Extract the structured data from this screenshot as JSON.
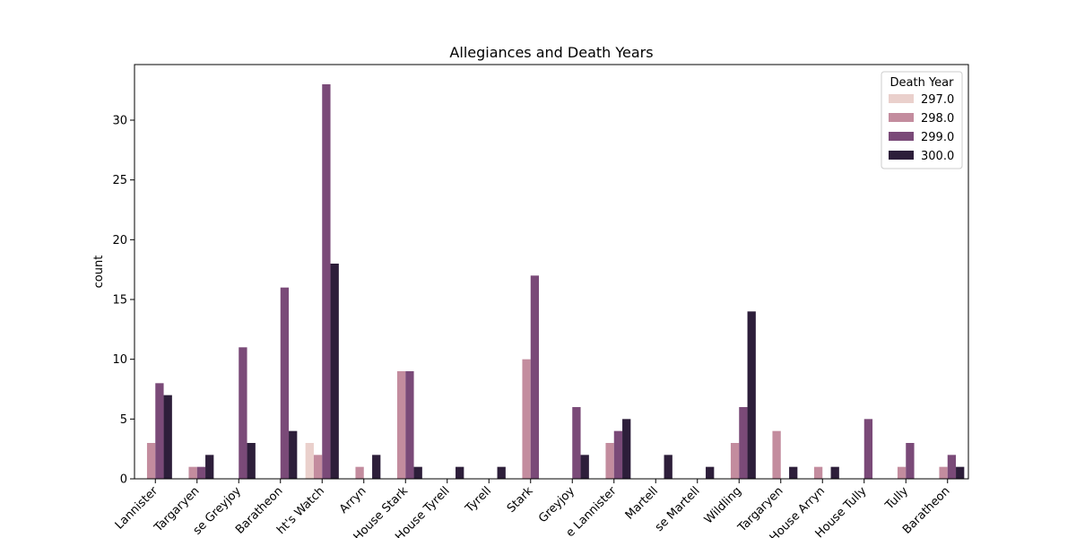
{
  "chart_data": {
    "type": "bar",
    "title": "Allegiances and Death Years",
    "xlabel": "",
    "ylabel": "count",
    "ylim": [
      0,
      34.65
    ],
    "yticks": [
      0,
      5,
      10,
      15,
      20,
      25,
      30
    ],
    "categories": [
      "Lannister",
      "Targaryen",
      "se Greyjoy",
      "Baratheon",
      "ht's Watch",
      "Arryn",
      "House Stark",
      "House Tyrell",
      "Tyrell",
      "Stark",
      "Greyjoy",
      "e Lannister",
      "Martell",
      "se Martell",
      "Wildling",
      "Targaryen",
      "House Arryn",
      "House Tully",
      "Tully",
      "Baratheon"
    ],
    "legend": {
      "title": "Death Year",
      "position": "top-right"
    },
    "series": [
      {
        "name": "297.0",
        "color": "#ead0cc",
        "values": [
          0,
          0,
          0,
          0,
          3,
          0,
          0,
          0,
          0,
          0,
          0,
          0,
          0,
          0,
          0,
          0,
          0,
          0,
          0,
          0
        ]
      },
      {
        "name": "298.0",
        "color": "#c38c9e",
        "values": [
          3,
          1,
          0,
          0,
          2,
          1,
          9,
          0,
          0,
          10,
          0,
          3,
          0,
          0,
          3,
          4,
          1,
          0,
          1,
          1
        ]
      },
      {
        "name": "299.0",
        "color": "#7a4a78",
        "values": [
          8,
          1,
          11,
          16,
          33,
          0,
          9,
          0,
          0,
          17,
          6,
          4,
          0,
          0,
          6,
          0,
          0,
          5,
          3,
          2
        ]
      },
      {
        "name": "300.0",
        "color": "#2d1e3a",
        "values": [
          7,
          2,
          3,
          4,
          18,
          2,
          1,
          1,
          1,
          0,
          2,
          5,
          2,
          1,
          14,
          1,
          1,
          0,
          0,
          1
        ]
      }
    ]
  }
}
